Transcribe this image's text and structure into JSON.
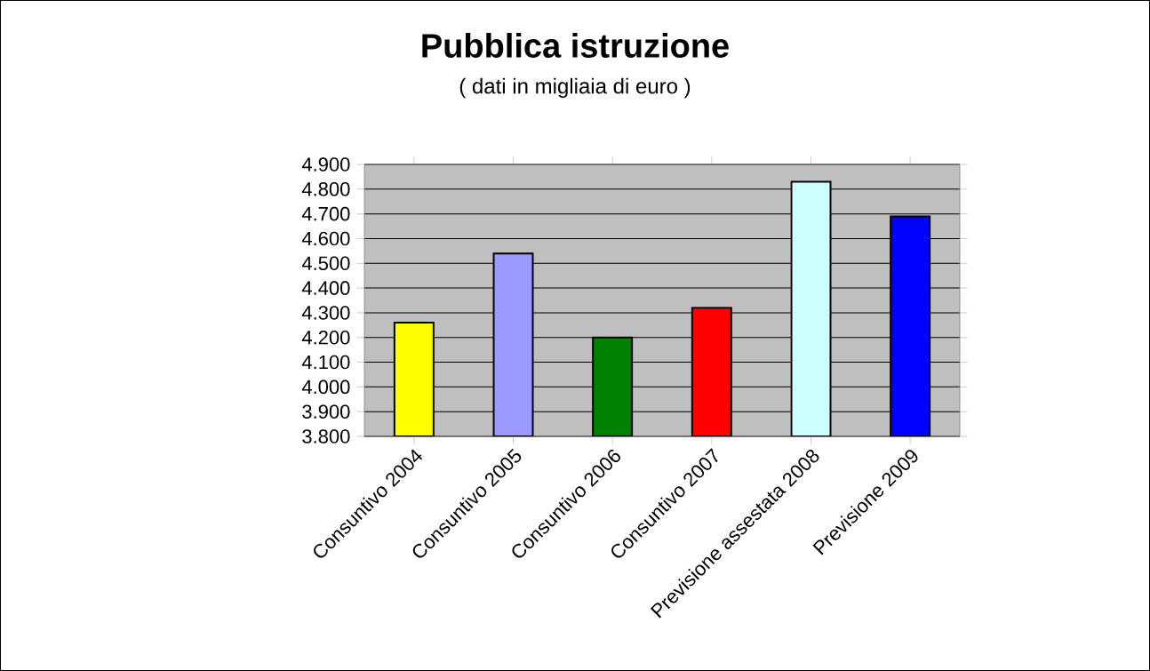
{
  "chart_data": {
    "type": "bar",
    "title": "Pubblica istruzione",
    "subtitle": "( dati in migliaia di euro )",
    "categories": [
      "Consuntivo 2004",
      "Consuntivo 2005",
      "Consuntivo 2006",
      "Consuntivo 2007",
      "Previsione assestata 2008",
      "Previsione 2009"
    ],
    "values": [
      4260,
      4540,
      4200,
      4320,
      4830,
      4690
    ],
    "colors": [
      "#ffff00",
      "#9999ff",
      "#008000",
      "#ff0000",
      "#ccffff",
      "#0000ff"
    ],
    "ylim": [
      3800,
      4900
    ],
    "yticks": [
      {
        "value": 3800,
        "label": "3.800"
      },
      {
        "value": 3900,
        "label": "3.900"
      },
      {
        "value": 4000,
        "label": "4.000"
      },
      {
        "value": 4100,
        "label": "4.100"
      },
      {
        "value": 4200,
        "label": "4.200"
      },
      {
        "value": 4300,
        "label": "4.300"
      },
      {
        "value": 4400,
        "label": "4.400"
      },
      {
        "value": 4500,
        "label": "4.500"
      },
      {
        "value": 4600,
        "label": "4.600"
      },
      {
        "value": 4700,
        "label": "4.700"
      },
      {
        "value": 4800,
        "label": "4.800"
      },
      {
        "value": 4900,
        "label": "4.900"
      }
    ],
    "grid": "y"
  }
}
